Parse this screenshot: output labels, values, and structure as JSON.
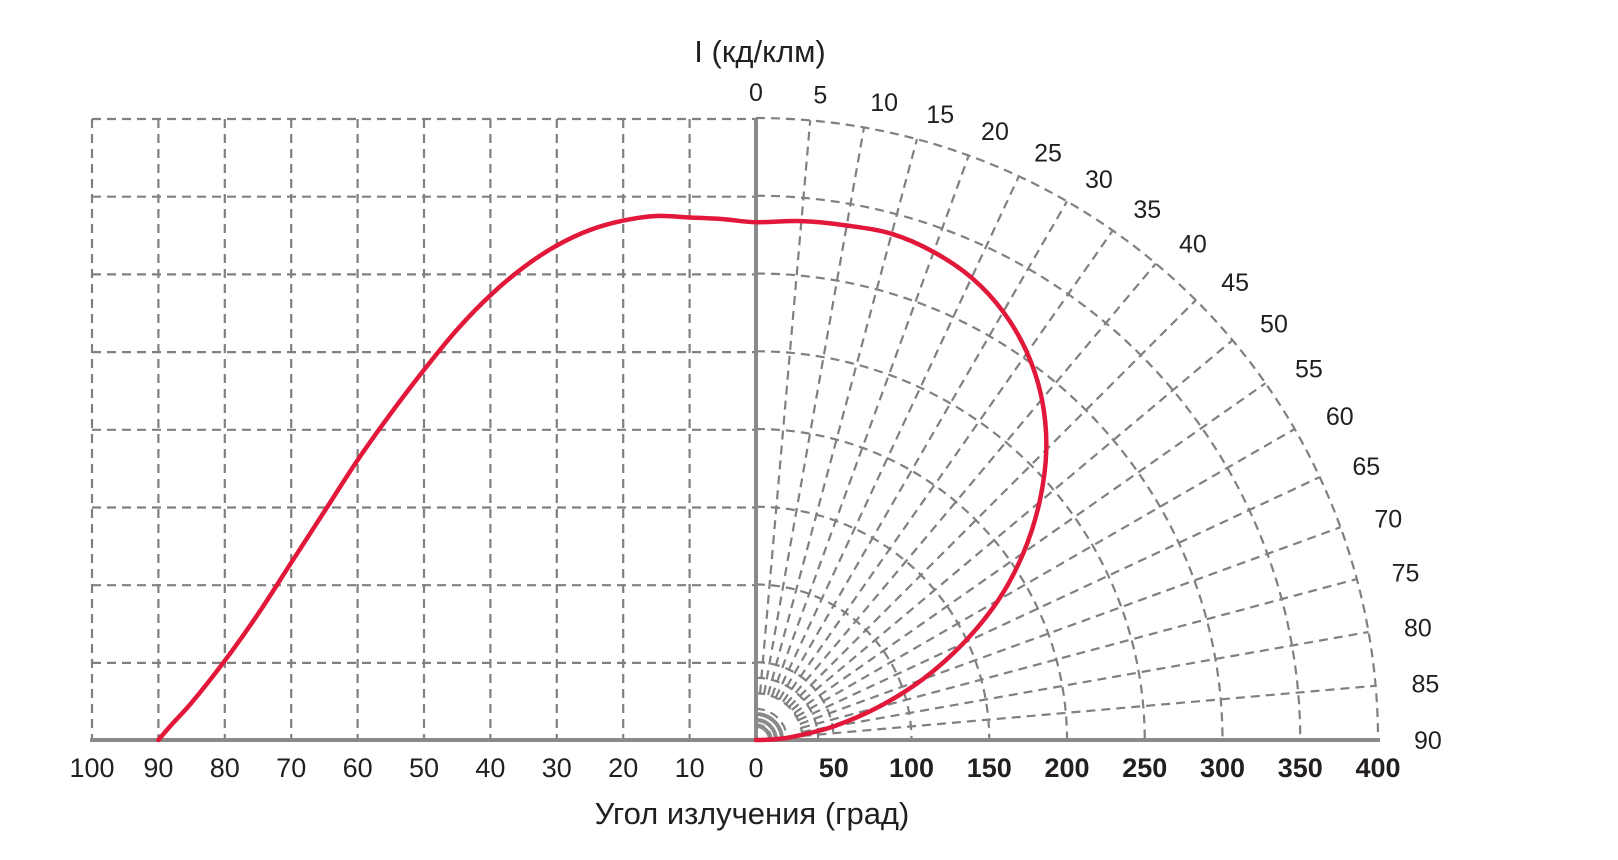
{
  "chart_data": {
    "type": "polar-intensity",
    "title": "I (кд/клм)",
    "xlabel": "Угол излучения (град)",
    "left_axis": {
      "labels": [
        "100",
        "90",
        "80",
        "70",
        "60",
        "50",
        "40",
        "30",
        "20",
        "10",
        "0"
      ],
      "range": [
        100,
        0
      ]
    },
    "right_axis": {
      "labels": [
        "0",
        "50",
        "100",
        "150",
        "200",
        "250",
        "300",
        "350",
        "400"
      ],
      "range": [
        0,
        400
      ],
      "ring_step": 50
    },
    "angle_labels": [
      "0",
      "5",
      "10",
      "15",
      "20",
      "25",
      "30",
      "35",
      "40",
      "45",
      "50",
      "55",
      "60",
      "65",
      "70",
      "75",
      "80",
      "85",
      "90"
    ],
    "series": [
      {
        "color": "#e2183a",
        "angles_deg": [
          0,
          5,
          10,
          15,
          20,
          25,
          30,
          35,
          40,
          45,
          50,
          55,
          60,
          65,
          70,
          75,
          80,
          85,
          88,
          90
        ],
        "intensity": [
          333,
          335,
          336,
          337,
          334,
          328,
          318,
          304,
          286,
          264,
          238,
          210,
          180,
          147,
          114,
          81,
          51,
          24,
          10,
          0
        ]
      }
    ],
    "grid": true,
    "colors": {
      "curve": "#e2183a",
      "grid": "#808080",
      "axis": "#8a8a8a",
      "text": "#231f20"
    }
  }
}
